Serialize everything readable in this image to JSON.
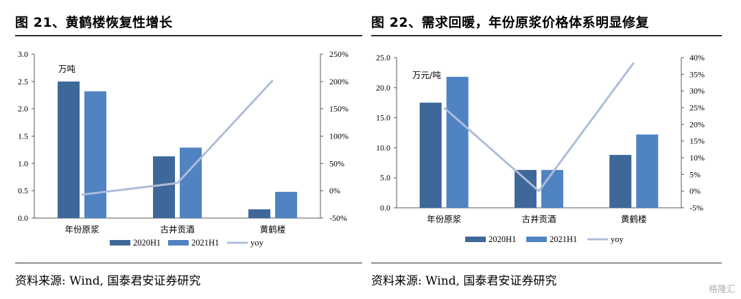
{
  "left": {
    "title": "图 21、黄鹤楼恢复性增长",
    "source": "资料来源: Wind, 国泰君安证券研究"
  },
  "right": {
    "title": "图 22、需求回暖，年份原浆价格体系明显修复",
    "source": "资料来源: Wind, 国泰君安证券研究"
  },
  "watermark": "格隆汇",
  "colors": {
    "series1": "#3e6899",
    "series2": "#4f83c2",
    "line": "#aebcd9"
  },
  "chart_data": [
    {
      "type": "bar",
      "categories": [
        "年份原浆",
        "古井贡酒",
        "黄鹤楼"
      ],
      "series": [
        {
          "name": "2020H1",
          "values": [
            2.5,
            1.13,
            0.16
          ]
        },
        {
          "name": "2021H1",
          "values": [
            2.32,
            1.29,
            0.48
          ]
        }
      ],
      "line_series": {
        "name": "yoy",
        "values": [
          -7,
          14,
          202
        ],
        "axis": "right"
      },
      "unit_label": "万吨",
      "ylim": [
        0,
        3.0
      ],
      "yticks": [
        "0.0",
        "0.5",
        "1.0",
        "1.5",
        "2.0",
        "2.5",
        "3.0"
      ],
      "y2lim": [
        -50,
        250
      ],
      "y2ticks": [
        "-50%",
        "0%",
        "50%",
        "100%",
        "150%",
        "200%",
        "250%"
      ],
      "legend": "bottom",
      "grid": false
    },
    {
      "type": "bar",
      "categories": [
        "年份原浆",
        "古井贡酒",
        "黄鹤楼"
      ],
      "series": [
        {
          "name": "2020H1",
          "values": [
            17.5,
            6.3,
            8.8
          ]
        },
        {
          "name": "2021H1",
          "values": [
            21.8,
            6.3,
            12.2
          ]
        }
      ],
      "line_series": {
        "name": "yoy",
        "values": [
          25,
          0,
          38.5
        ],
        "axis": "right"
      },
      "unit_label": "万元/吨",
      "ylim": [
        0,
        25
      ],
      "yticks": [
        "0.0",
        "5.0",
        "10.0",
        "15.0",
        "20.0",
        "25.0"
      ],
      "y2lim": [
        -5,
        40
      ],
      "y2ticks": [
        "-5%",
        "0%",
        "5%",
        "10%",
        "15%",
        "20%",
        "25%",
        "30%",
        "35%",
        "40%"
      ],
      "legend": "bottom",
      "grid": false
    }
  ]
}
